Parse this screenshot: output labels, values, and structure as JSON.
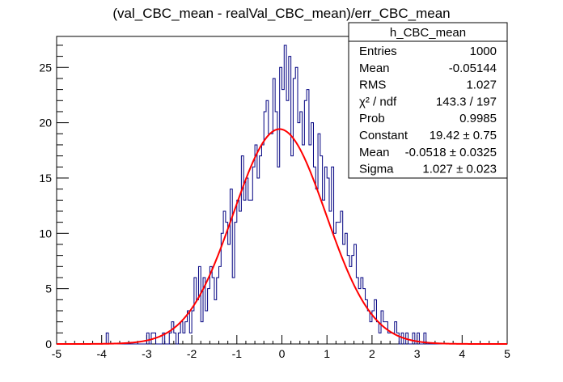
{
  "chart_data": {
    "type": "histogram",
    "title": "(val_CBC_mean - realVal_CBC_mean)/err_CBC_mean",
    "xlabel": "",
    "ylabel": "",
    "xlim": [
      -5,
      5
    ],
    "ylim": [
      0,
      27.8
    ],
    "x_ticks": [
      -5,
      -4,
      -3,
      -2,
      -1,
      0,
      1,
      2,
      3,
      4,
      5
    ],
    "y_ticks": [
      0,
      5,
      10,
      15,
      20,
      25
    ],
    "x_tick_labels": [
      "-5",
      "-4",
      "-3",
      "-2",
      "-1",
      "0",
      "1",
      "2",
      "3",
      "4",
      "5"
    ],
    "y_tick_labels": [
      "0",
      "5",
      "10",
      "15",
      "20",
      "25"
    ],
    "bins": {
      "count": 200,
      "min": -5,
      "max": 5
    },
    "histogram": {
      "name": "h_CBC_mean",
      "color": "#000080",
      "counts": [
        0,
        0,
        0,
        0,
        0,
        0,
        0,
        0,
        0,
        0,
        0,
        0,
        0,
        0,
        0,
        0,
        0,
        0,
        0,
        0,
        0,
        0,
        1,
        0,
        0,
        0,
        0,
        0,
        0,
        0,
        0,
        0,
        0,
        0,
        0,
        0,
        0,
        0,
        0,
        0,
        1,
        0,
        1,
        1,
        0,
        0,
        0,
        1,
        0,
        0,
        1,
        2,
        1,
        0,
        1,
        2,
        1,
        2,
        3,
        1,
        3,
        6,
        4,
        7,
        2,
        6,
        3,
        5,
        7,
        6,
        4,
        6,
        7,
        10,
        12,
        11,
        9,
        14,
        6,
        11,
        13,
        12,
        17,
        13,
        15,
        13,
        13,
        16,
        18,
        15,
        17,
        18,
        21,
        22,
        19,
        19,
        24,
        21,
        16,
        25,
        23,
        27,
        22,
        26,
        17,
        24,
        25,
        20,
        21,
        18,
        22,
        23,
        18,
        20,
        16,
        14,
        19,
        17,
        13,
        16,
        15,
        12,
        16,
        10,
        11,
        11,
        12,
        9,
        10,
        8,
        7,
        8,
        9,
        6,
        5,
        6,
        5,
        4,
        3,
        2,
        3,
        4,
        2,
        1,
        3,
        2,
        2,
        1,
        1,
        1,
        2,
        1,
        0,
        1,
        0,
        1,
        0,
        0,
        1,
        0,
        1,
        0,
        0,
        1,
        0,
        0,
        0,
        0,
        0,
        0,
        0,
        0,
        0,
        0,
        0,
        0,
        0,
        0,
        0,
        0,
        0,
        0,
        0,
        0,
        0,
        0,
        0,
        0,
        0,
        0,
        0,
        0,
        0,
        0,
        0,
        0,
        0,
        0,
        0,
        0,
        0,
        0,
        0
      ]
    },
    "fit": {
      "function": "gaus",
      "color": "#ff0000",
      "constant": 19.42,
      "mean": -0.0518,
      "sigma": 1.027
    },
    "stats_box": {
      "title": "h_CBC_mean",
      "rows": [
        {
          "label": "Entries",
          "value": "1000"
        },
        {
          "label": "Mean",
          "value": "-0.05144"
        },
        {
          "label": "RMS",
          "value": "1.027"
        },
        {
          "label": "χ² / ndf",
          "value": "143.3 / 197"
        },
        {
          "label": "Prob",
          "value": "0.9985"
        },
        {
          "label": "Constant",
          "value": "19.42 ± 0.75"
        },
        {
          "label": "Mean",
          "value": "-0.0518 ± 0.0325"
        },
        {
          "label": "Sigma",
          "value": "1.027 ± 0.023"
        }
      ],
      "placement": "top-right"
    },
    "grid": false
  }
}
